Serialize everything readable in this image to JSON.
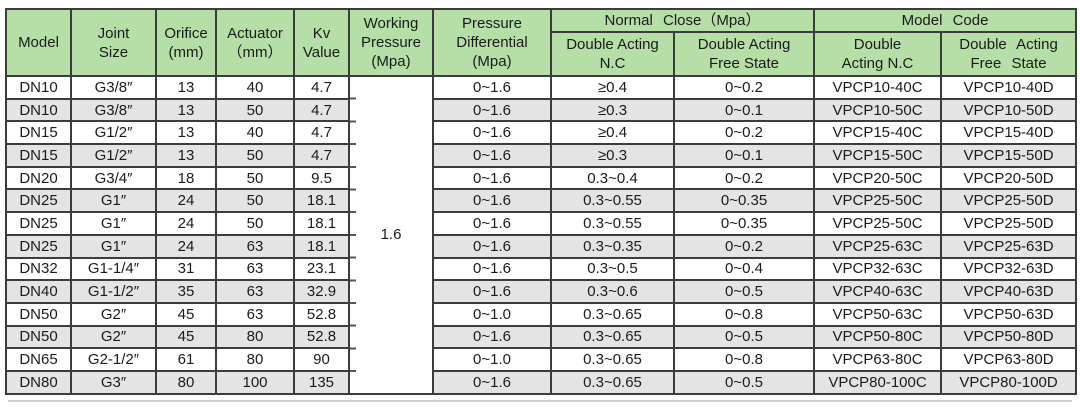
{
  "table": {
    "headers": {
      "model": "Model",
      "joint_size": "Joint\nSize",
      "orifice": "Orifice\n(mm)",
      "actuator": "Actuator\n（mm）",
      "kv": "Kv\nValue",
      "working_pressure": "Working\nPressure\n(Mpa)",
      "pressure_differential": "Pressure\nDifferential\n(Mpa)",
      "normal_close_group": "Normal Close（Mpa）",
      "model_code_group": "Model Code",
      "nc_double_acting_nc": "Double Acting\nN.C",
      "nc_double_acting_free": "Double Acting\nFree State",
      "mc_double_acting_nc": "Double\nActing N.C",
      "mc_double_acting_free": "Double Acting\nFree State"
    },
    "working_pressure_value": "1.6",
    "rows": [
      {
        "model": "DN10",
        "joint_size": "G3/8″",
        "orifice": "13",
        "actuator": "40",
        "kv": "4.7",
        "pressure_differential": "0~1.6",
        "nc_double_acting": "≥0.4",
        "nc_free_state": "0~0.2",
        "code_nc": "VPCP10-40C",
        "code_free": "VPCP10-40D"
      },
      {
        "model": "DN10",
        "joint_size": "G3/8″",
        "orifice": "13",
        "actuator": "50",
        "kv": "4.7",
        "pressure_differential": "0~1.6",
        "nc_double_acting": "≥0.3",
        "nc_free_state": "0~0.1",
        "code_nc": "VPCP10-50C",
        "code_free": "VPCP10-50D"
      },
      {
        "model": "DN15",
        "joint_size": "G1/2″",
        "orifice": "13",
        "actuator": "40",
        "kv": "4.7",
        "pressure_differential": "0~1.6",
        "nc_double_acting": "≥0.4",
        "nc_free_state": "0~0.2",
        "code_nc": "VPCP15-40C",
        "code_free": "VPCP15-40D"
      },
      {
        "model": "DN15",
        "joint_size": "G1/2″",
        "orifice": "13",
        "actuator": "50",
        "kv": "4.7",
        "pressure_differential": "0~1.6",
        "nc_double_acting": "≥0.3",
        "nc_free_state": "0~0.1",
        "code_nc": "VPCP15-50C",
        "code_free": "VPCP15-50D"
      },
      {
        "model": "DN20",
        "joint_size": "G3/4″",
        "orifice": "18",
        "actuator": "50",
        "kv": "9.5",
        "pressure_differential": "0~1.6",
        "nc_double_acting": "0.3~0.4",
        "nc_free_state": "0~0.2",
        "code_nc": "VPCP20-50C",
        "code_free": "VPCP20-50D"
      },
      {
        "model": "DN25",
        "joint_size": "G1″",
        "orifice": "24",
        "actuator": "50",
        "kv": "18.1",
        "pressure_differential": "0~1.6",
        "nc_double_acting": "0.3~0.55",
        "nc_free_state": "0~0.35",
        "code_nc": "VPCP25-50C",
        "code_free": "VPCP25-50D"
      },
      {
        "model": "DN25",
        "joint_size": "G1″",
        "orifice": "24",
        "actuator": "50",
        "kv": "18.1",
        "pressure_differential": "0~1.6",
        "nc_double_acting": "0.3~0.55",
        "nc_free_state": "0~0.35",
        "code_nc": "VPCP25-50C",
        "code_free": "VPCP25-50D"
      },
      {
        "model": "DN25",
        "joint_size": "G1″",
        "orifice": "24",
        "actuator": "63",
        "kv": "18.1",
        "pressure_differential": "0~1.6",
        "nc_double_acting": "0.3~0.35",
        "nc_free_state": "0~0.2",
        "code_nc": "VPCP25-63C",
        "code_free": "VPCP25-63D"
      },
      {
        "model": "DN32",
        "joint_size": "G1-1/4″",
        "orifice": "31",
        "actuator": "63",
        "kv": "23.1",
        "pressure_differential": "0~1.6",
        "nc_double_acting": "0.3~0.5",
        "nc_free_state": "0~0.4",
        "code_nc": "VPCP32-63C",
        "code_free": "VPCP32-63D"
      },
      {
        "model": "DN40",
        "joint_size": "G1-1/2″",
        "orifice": "35",
        "actuator": "63",
        "kv": "32.9",
        "pressure_differential": "0~1.6",
        "nc_double_acting": "0.3~0.6",
        "nc_free_state": "0~0.5",
        "code_nc": "VPCP40-63C",
        "code_free": "VPCP40-63D"
      },
      {
        "model": "DN50",
        "joint_size": "G2″",
        "orifice": "45",
        "actuator": "63",
        "kv": "52.8",
        "pressure_differential": "0~1.0",
        "nc_double_acting": "0.3~0.65",
        "nc_free_state": "0~0.8",
        "code_nc": "VPCP50-63C",
        "code_free": "VPCP50-63D"
      },
      {
        "model": "DN50",
        "joint_size": "G2″",
        "orifice": "45",
        "actuator": "80",
        "kv": "52.8",
        "pressure_differential": "0~1.6",
        "nc_double_acting": "0.3~0.65",
        "nc_free_state": "0~0.5",
        "code_nc": "VPCP50-80C",
        "code_free": "VPCP50-80D"
      },
      {
        "model": "DN65",
        "joint_size": "G2-1/2″",
        "orifice": "61",
        "actuator": "80",
        "kv": "90",
        "pressure_differential": "0~1.0",
        "nc_double_acting": "0.3~0.65",
        "nc_free_state": "0~0.8",
        "code_nc": "VPCP63-80C",
        "code_free": "VPCP63-80D"
      },
      {
        "model": "DN80",
        "joint_size": "G3″",
        "orifice": "80",
        "actuator": "100",
        "kv": "135",
        "pressure_differential": "0~1.6",
        "nc_double_acting": "0.3~0.65",
        "nc_free_state": "0~0.5",
        "code_nc": "VPCP80-100C",
        "code_free": "VPCP80-100D"
      }
    ],
    "colors": {
      "header_green": "#b5dfa6",
      "row_alt_gray": "#e4e4e4",
      "border_dark": "#3c3c3c"
    }
  }
}
